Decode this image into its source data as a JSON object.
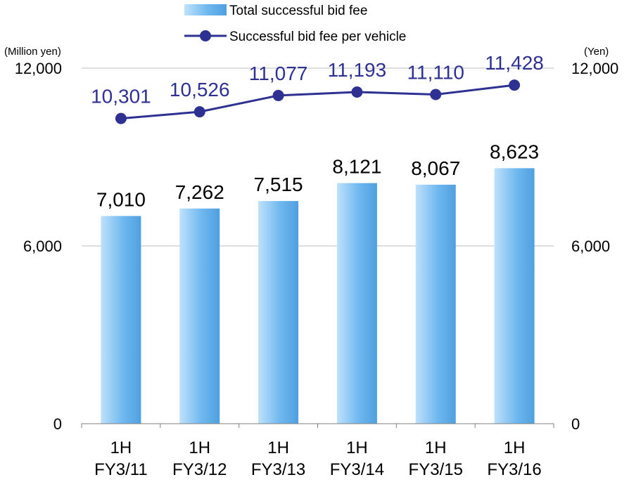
{
  "chart_data": {
    "type": "bar",
    "categories": [
      [
        "1H",
        "FY3/11"
      ],
      [
        "1H",
        "FY3/12"
      ],
      [
        "1H",
        "FY3/13"
      ],
      [
        "1H",
        "FY3/14"
      ],
      [
        "1H",
        "FY3/15"
      ],
      [
        "1H",
        "FY3/16"
      ]
    ],
    "series": [
      {
        "name": "Total successful bid fee",
        "type": "bar",
        "axis": "left",
        "values": [
          7010,
          7262,
          7515,
          8121,
          8067,
          8623
        ],
        "labels": [
          "7,010",
          "7,262",
          "7,515",
          "8,121",
          "8,067",
          "8,623"
        ]
      },
      {
        "name": "Successful bid fee per vehicle",
        "type": "line",
        "axis": "right",
        "values": [
          10301,
          10526,
          11077,
          11193,
          11110,
          11428
        ],
        "labels": [
          "10,301",
          "10,526",
          "11,077",
          "11,193",
          "11,110",
          "11,428"
        ]
      }
    ],
    "ylabel": "(Million yen)",
    "y2label": "(Yen)",
    "ylim": [
      0,
      12000
    ],
    "y2lim": [
      0,
      12000
    ],
    "yticks": [
      "0",
      "6,000",
      "12,000"
    ],
    "y2ticks": [
      "0",
      "6,000",
      "12,000"
    ],
    "ytick_values": [
      0,
      6000,
      12000
    ],
    "grid": true,
    "legend_position": "top-center",
    "colors": {
      "bar_light": "#bfe1fb",
      "bar_mid": "#6fb8ef",
      "bar_dark": "#4f9fe0",
      "line": "#2e3092",
      "line_label": "#2e3092",
      "grid": "#bfbfbf",
      "axis": "#7f7f7f"
    }
  }
}
